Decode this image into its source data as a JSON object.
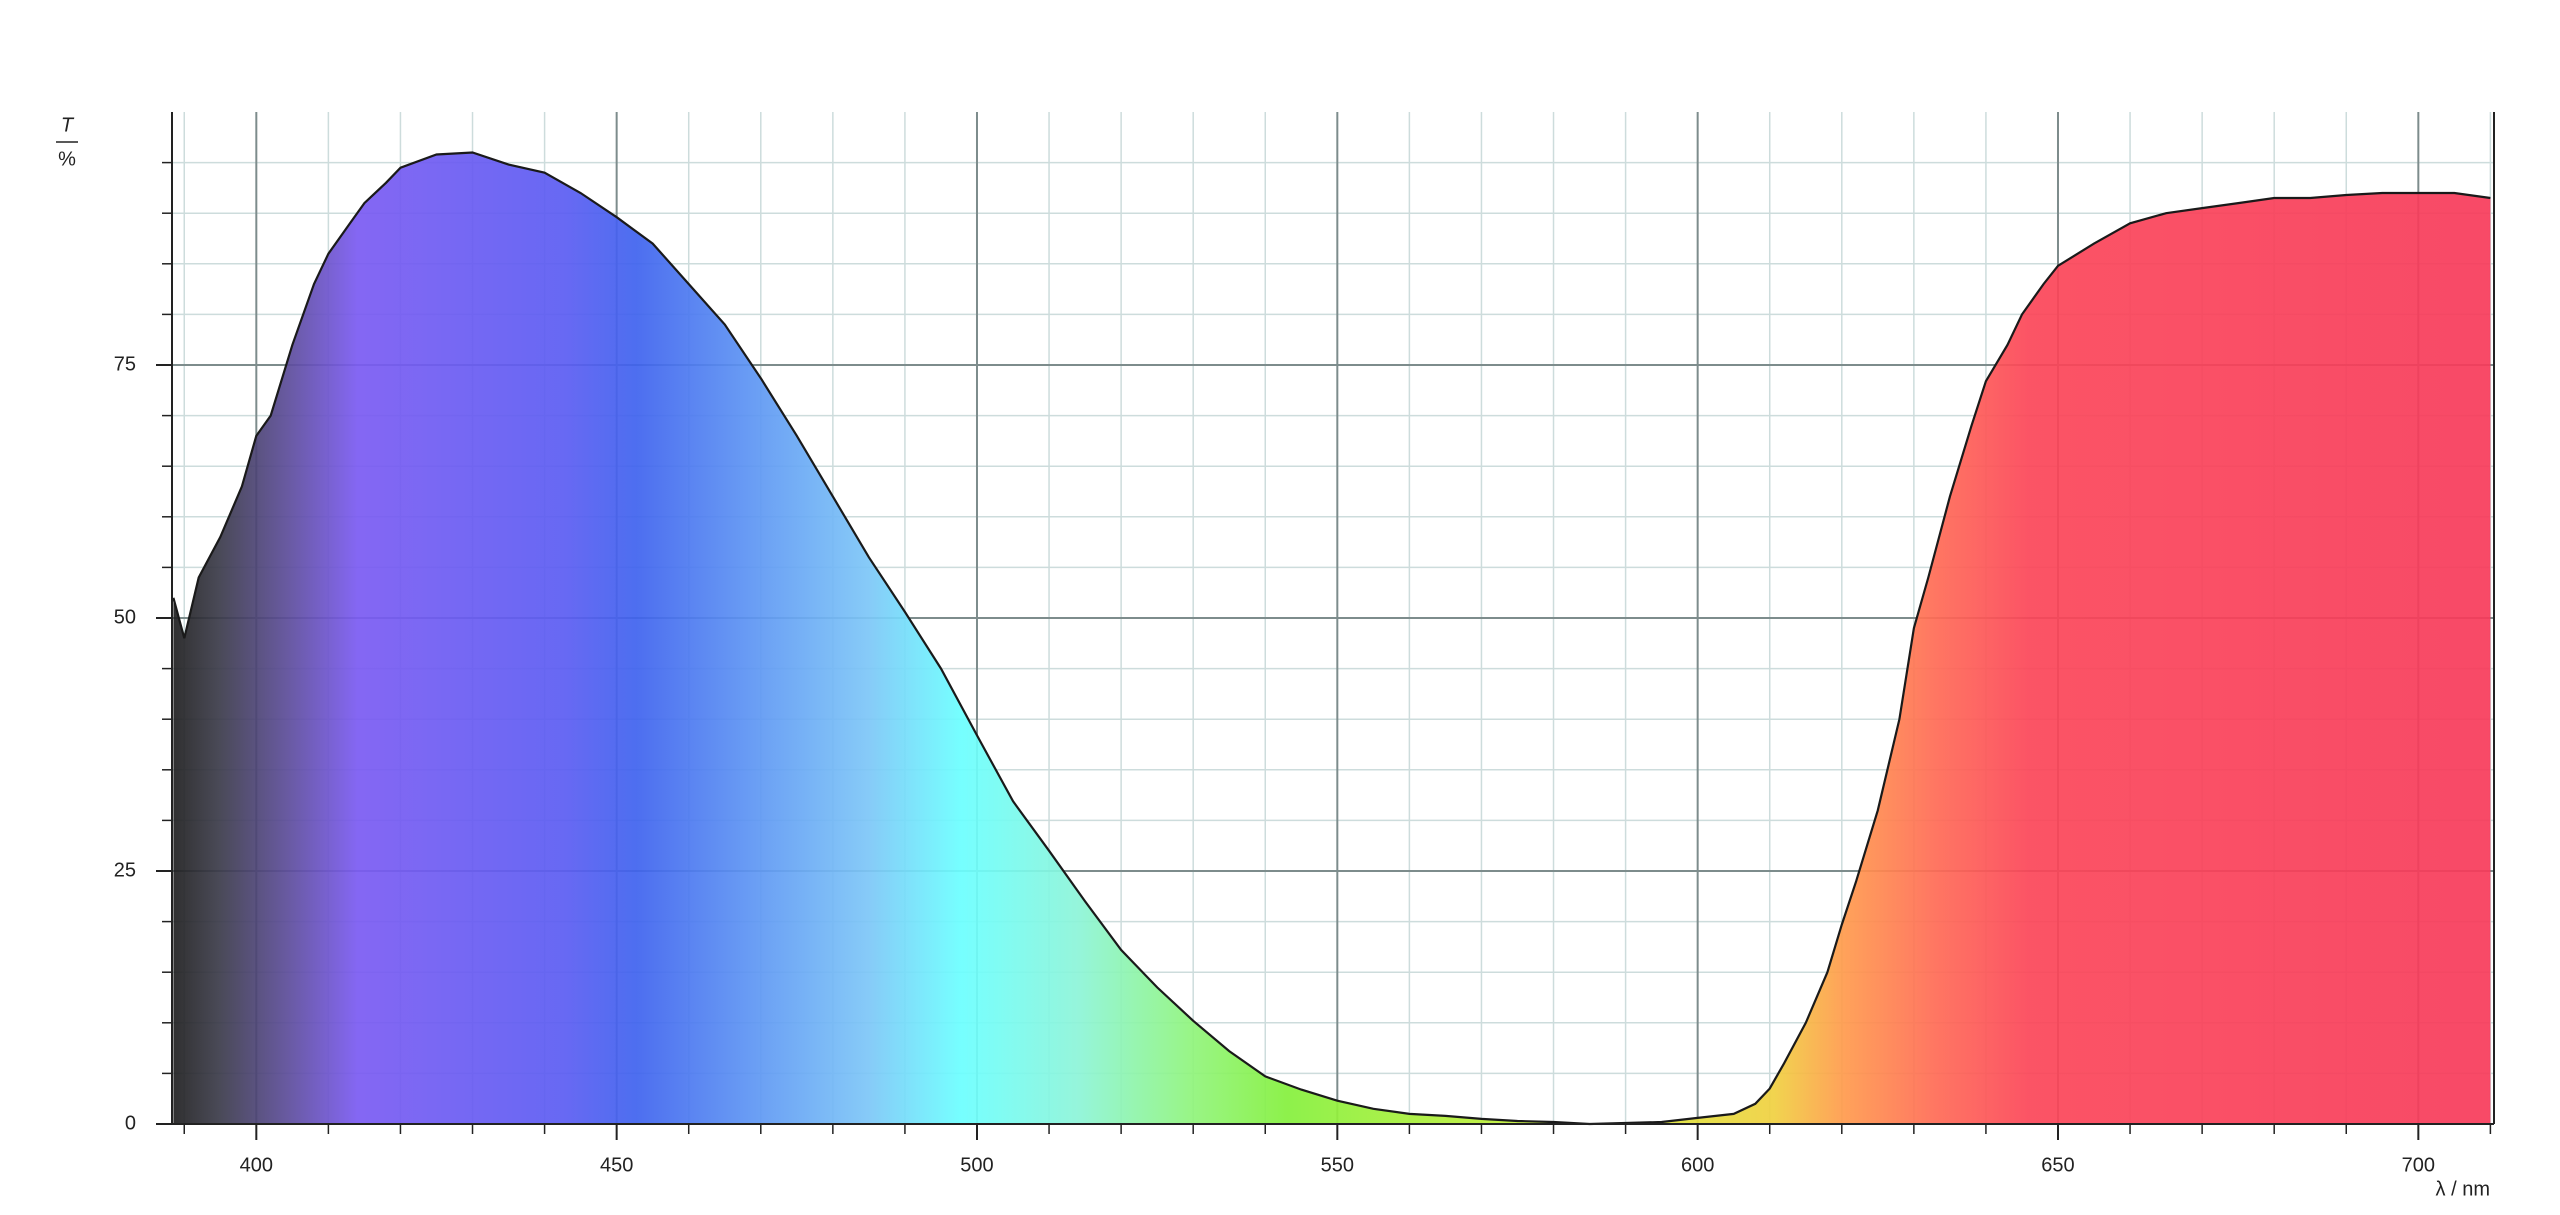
{
  "chart_data": {
    "type": "area",
    "x": [
      388.5,
      390,
      392,
      395,
      398,
      400,
      402,
      405,
      408,
      410,
      413,
      415,
      418,
      420,
      425,
      430,
      435,
      440,
      445,
      450,
      455,
      460,
      465,
      470,
      475,
      480,
      485,
      490,
      495,
      500,
      505,
      510,
      515,
      520,
      525,
      530,
      535,
      540,
      545,
      550,
      555,
      560,
      565,
      570,
      575,
      580,
      585,
      590,
      595,
      600,
      605,
      608,
      610,
      612,
      615,
      618,
      620,
      622,
      625,
      628,
      630,
      632,
      635,
      638,
      640,
      643,
      645,
      648,
      650,
      655,
      660,
      665,
      670,
      675,
      680,
      685,
      690,
      695,
      700,
      705,
      710
    ],
    "values": [
      52,
      48,
      54,
      58,
      63,
      68,
      70,
      77,
      83,
      86,
      89,
      91,
      93,
      94.5,
      95.8,
      96,
      94.8,
      94,
      92,
      89.6,
      87,
      83,
      79,
      73.7,
      68,
      62,
      56,
      50.6,
      45,
      38.4,
      31.9,
      27,
      22,
      17.2,
      13.5,
      10.2,
      7.2,
      4.7,
      3.4,
      2.3,
      1.5,
      1,
      0.8,
      0.5,
      0.3,
      0.2,
      0,
      0.1,
      0.2,
      0.6,
      1,
      2,
      3.5,
      6,
      10,
      15,
      19.7,
      24,
      31,
      40,
      49,
      54,
      62,
      69,
      73.4,
      77,
      80,
      83,
      84.8,
      87,
      89,
      90,
      90.5,
      91,
      91.5,
      91.5,
      91.8,
      92,
      92,
      92,
      91.5
    ],
    "color": "#1a1a1a",
    "xlim": [
      388.3,
      710.5
    ],
    "ylim": [
      0,
      100
    ],
    "xticks": [
      400,
      450,
      500,
      550,
      600,
      650,
      700
    ],
    "yticks": [
      0,
      25,
      50,
      75
    ],
    "xminorticks": [
      390,
      410,
      420,
      430,
      440,
      460,
      470,
      480,
      490,
      510,
      520,
      530,
      540,
      560,
      570,
      580,
      590,
      610,
      620,
      630,
      640,
      660,
      670,
      680,
      690,
      710
    ],
    "yminorticks": [
      5,
      10,
      15,
      20,
      30,
      35,
      40,
      45,
      55,
      60,
      65,
      70,
      80,
      85,
      90,
      95
    ],
    "xlabel": "λ / nm",
    "ylabel": {
      "symbol": "T",
      "unit": "%"
    },
    "grid": true
  }
}
